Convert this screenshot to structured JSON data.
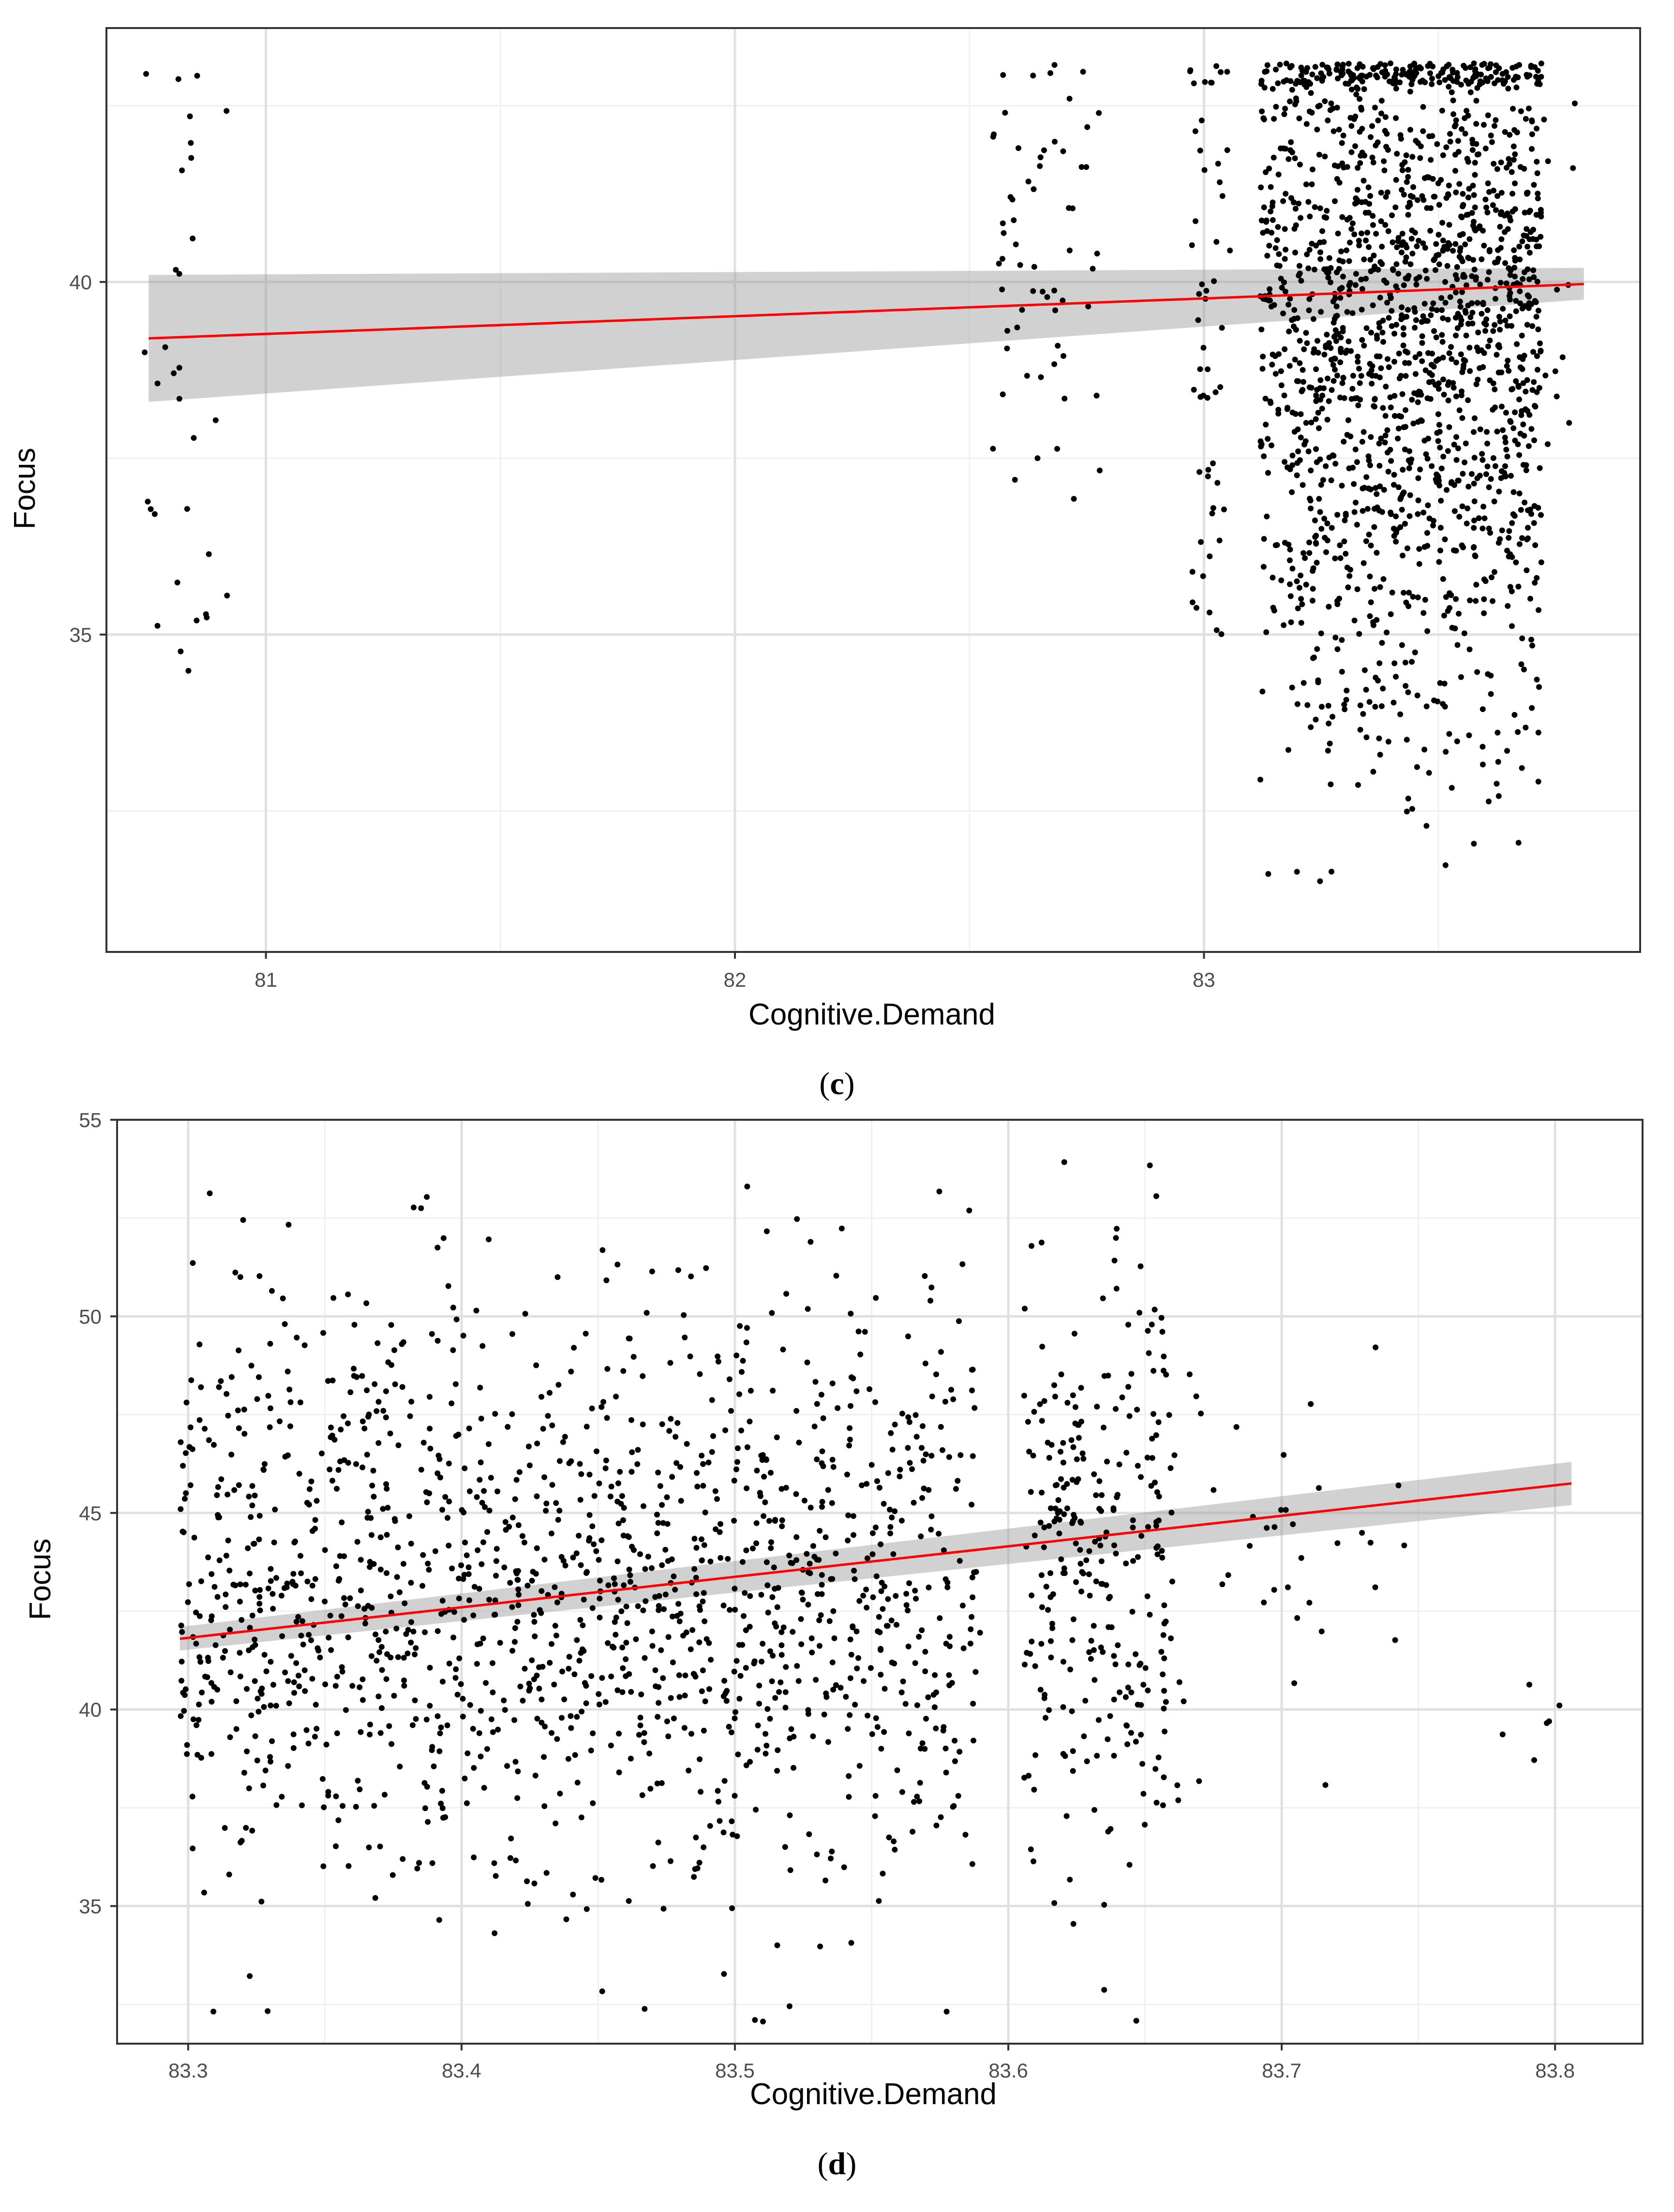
{
  "colors": {
    "point": "#000000",
    "fit_line": "#ff0000",
    "ci_band": "#999999",
    "grid_major": "#e0e0e0",
    "grid_minor": "#f0f0f0",
    "panel_border": "#333333"
  },
  "chart_data": [
    {
      "type": "scatter",
      "panel_label": "c",
      "title": "",
      "xlabel": "Cognitive.Demand",
      "ylabel": "Focus",
      "xlim": [
        80.66,
        83.93
      ],
      "ylim": [
        30.5,
        43.6
      ],
      "x_ticks": [
        81,
        82,
        83
      ],
      "y_ticks": [
        35,
        40
      ],
      "grid": true,
      "legend": "none",
      "fit": {
        "x0": 80.75,
        "y0": 39.2,
        "x1": 83.81,
        "y1": 39.97,
        "ci_low": [
          38.3,
          39.75
        ],
        "ci_high": [
          40.1,
          40.2
        ]
      },
      "points_seed": 11,
      "clusters": [
        {
          "name": "left",
          "n": 32,
          "x": [
            80.74,
            80.92
          ],
          "y_mean": 39.5,
          "y_sd": 3.1,
          "y_min": 34.3,
          "y_max": 43.1
        },
        {
          "name": "mid",
          "n": 62,
          "x": [
            82.55,
            82.78
          ],
          "y_mean": 40.0,
          "y_sd": 2.0,
          "y_min": 36.5,
          "y_max": 43.1
        },
        {
          "name": "left-of-main",
          "n": 55,
          "x": [
            82.97,
            83.06
          ],
          "y_mean": 39.0,
          "y_sd": 2.6,
          "y_min": 35.0,
          "y_max": 43.1
        },
        {
          "name": "main",
          "n": 1700,
          "x": [
            83.12,
            83.72
          ],
          "y_mean": 39.4,
          "y_sd": 2.9,
          "y_min": 31.5,
          "y_max": 43.1
        },
        {
          "name": "right",
          "n": 12,
          "x": [
            83.72,
            83.8
          ],
          "y_mean": 39.4,
          "y_sd": 2.0,
          "y_min": 37.6,
          "y_max": 42.7
        }
      ]
    },
    {
      "type": "scatter",
      "panel_label": "d",
      "title": "",
      "xlabel": "Cognitive.Demand",
      "ylabel": "Focus",
      "xlim": [
        83.274,
        83.832
      ],
      "ylim": [
        31.5,
        55.0
      ],
      "x_ticks": [
        83.3,
        83.4,
        83.5,
        83.6,
        83.7,
        83.8
      ],
      "y_ticks": [
        35,
        40,
        45,
        50,
        55
      ],
      "grid": true,
      "legend": "none",
      "fit": {
        "x0": 83.297,
        "y0": 41.8,
        "x1": 83.806,
        "y1": 45.75,
        "ci_low": [
          41.5,
          45.2
        ],
        "ci_high": [
          42.1,
          46.3
        ]
      },
      "points_seed": 29,
      "clusters": [
        {
          "name": "main",
          "n": 1750,
          "x": [
            83.297,
            83.66
          ],
          "y_mean": 43.2,
          "y_sd": 3.8,
          "y_min": 32.0,
          "y_max": 54.0
        },
        {
          "name": "tail",
          "n": 40,
          "x": [
            83.66,
            83.75
          ],
          "y_mean": 44.0,
          "y_sd": 3.6,
          "y_min": 37.5,
          "y_max": 49.5
        },
        {
          "name": "far-right",
          "n": 6,
          "x": [
            83.78,
            83.807
          ],
          "y_mean": 40.0,
          "y_sd": 2.0,
          "y_min": 37.8,
          "y_max": 42.7
        }
      ]
    }
  ]
}
